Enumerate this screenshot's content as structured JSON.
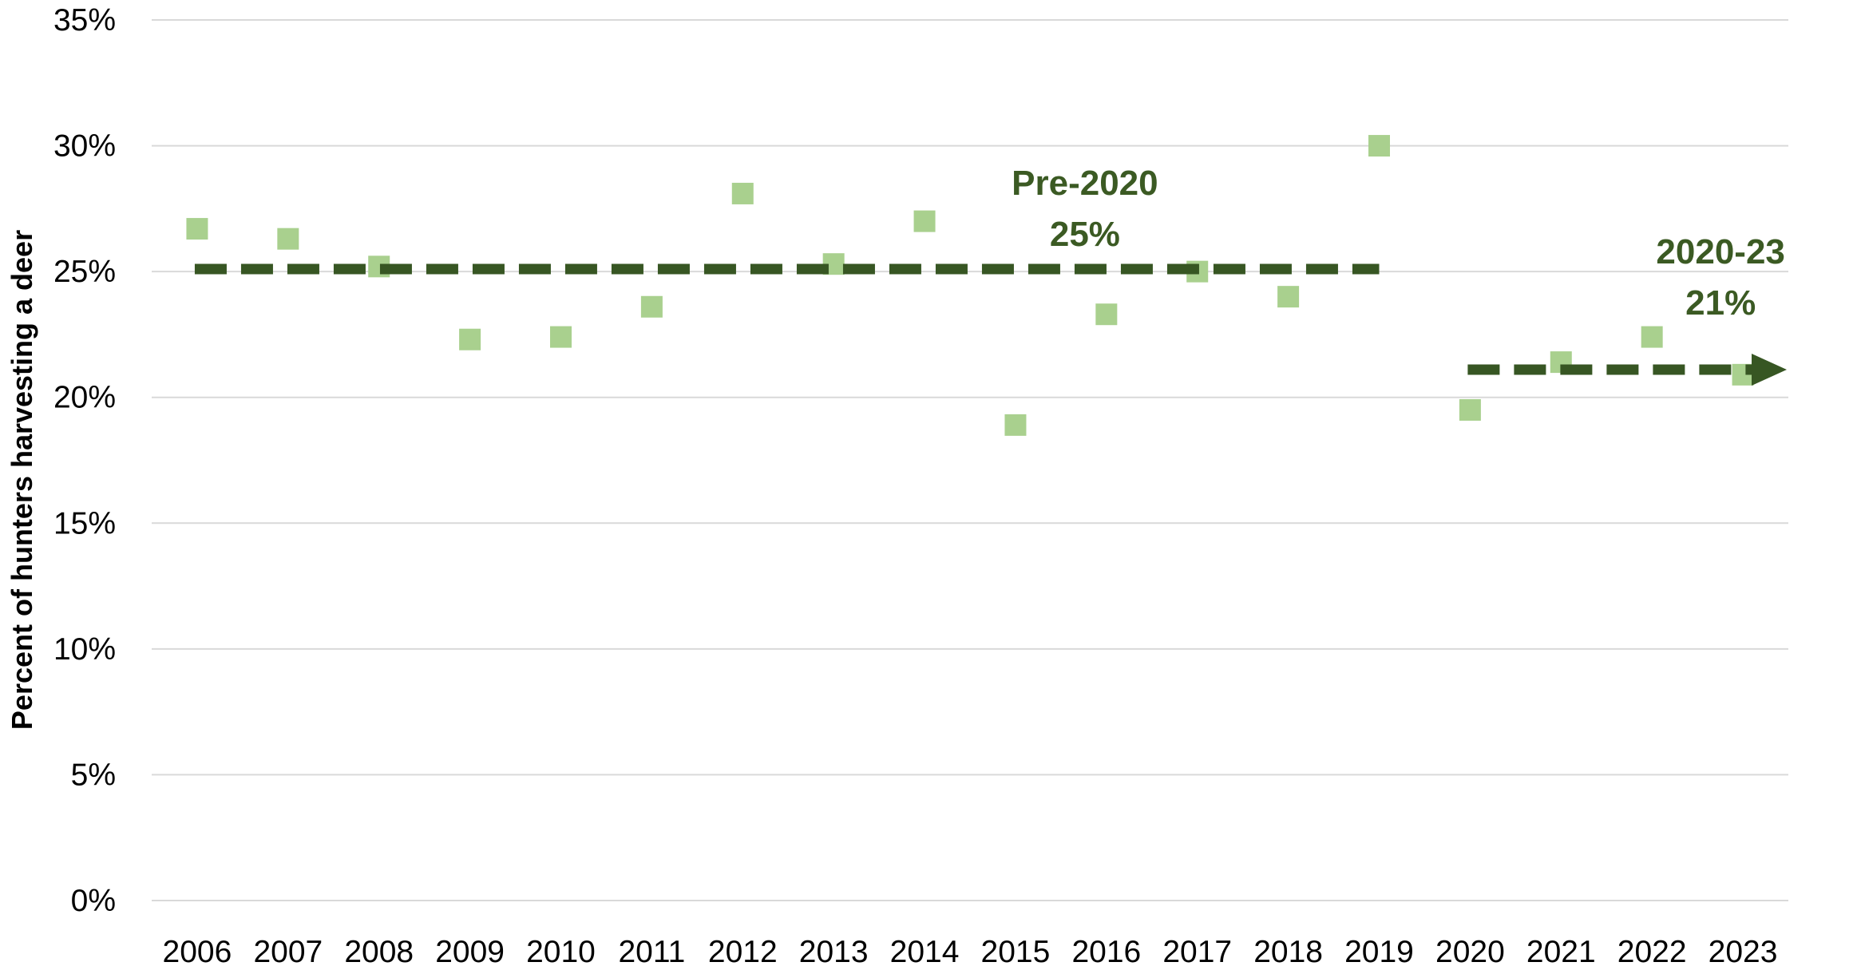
{
  "chart_data": {
    "type": "scatter",
    "ylabel": "Percent of hunters harvesting a deer",
    "xlabel": "",
    "title": "",
    "categories": [
      "2006",
      "2007",
      "2008",
      "2009",
      "2010",
      "2011",
      "2012",
      "2013",
      "2014",
      "2015",
      "2016",
      "2017",
      "2018",
      "2019",
      "2020",
      "2021",
      "2022",
      "2023"
    ],
    "values": [
      26.7,
      26.3,
      25.2,
      22.3,
      22.4,
      23.6,
      28.1,
      25.3,
      27.0,
      18.9,
      23.3,
      25.0,
      24.0,
      30.0,
      19.5,
      21.4,
      22.4,
      20.9
    ],
    "ylim": [
      0,
      35
    ],
    "yticks": [
      "0%",
      "5%",
      "10%",
      "15%",
      "20%",
      "25%",
      "30%",
      "35%"
    ],
    "ytick_values": [
      0,
      5,
      10,
      15,
      20,
      25,
      30,
      35
    ],
    "grid": true,
    "colors": {
      "points": "#a9d08e",
      "trend": "#375623",
      "grid": "#d9d9d9",
      "annotation": "#3b5a23"
    },
    "trends": [
      {
        "from": "2006",
        "to": "2019",
        "value": 25.1,
        "arrow": false
      },
      {
        "from": "2020",
        "to": "2023",
        "value": 21.1,
        "arrow": true
      }
    ],
    "annotations": [
      {
        "line1": "Pre-2020",
        "line2": "25%"
      },
      {
        "line1": "2020-23",
        "line2": "21%"
      }
    ]
  }
}
